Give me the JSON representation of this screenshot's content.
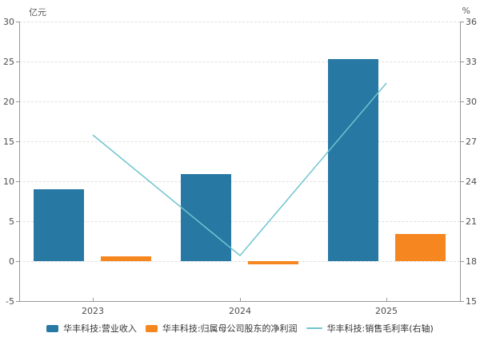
{
  "chart_data": {
    "type": "bar+line",
    "title": "",
    "categories": [
      "2023",
      "2024",
      "2025"
    ],
    "series": [
      {
        "name": "华丰科技:营业收入",
        "type": "bar",
        "axis": "left",
        "color": "#2878a4",
        "values": [
          9.0,
          10.9,
          25.3
        ]
      },
      {
        "name": "华丰科技:归属母公司股东的净利润",
        "type": "bar",
        "axis": "left",
        "color": "#f6861f",
        "values": [
          0.6,
          -0.4,
          3.4
        ]
      },
      {
        "name": "华丰科技:销售毛利率(右轴)",
        "type": "line",
        "axis": "right",
        "color": "#6fc5ce",
        "values": [
          27.5,
          18.4,
          31.4
        ]
      }
    ],
    "ylabel": "亿元",
    "ylabel_right": "%",
    "left_ylim": [
      -5,
      30
    ],
    "left_ticks": [
      30,
      25,
      20,
      15,
      10,
      5,
      0,
      -5
    ],
    "right_ylim": [
      15,
      36
    ],
    "right_ticks": [
      36,
      33,
      30,
      27,
      24,
      21,
      18,
      15
    ],
    "grid": true,
    "legend_position": "bottom"
  },
  "colors": {
    "axis": "#999999",
    "gridline": "#e0e0e0",
    "tick_label": "#4d4d4d",
    "background": "#ffffff"
  }
}
